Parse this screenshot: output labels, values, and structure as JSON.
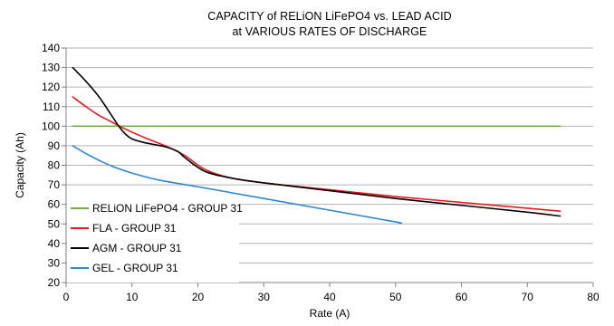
{
  "chart_data": {
    "type": "line",
    "title": "CAPACITY of RELiON LiFePO4 vs. LEAD ACID",
    "subtitle": "at VARIOUS RATES OF DISCHARGE",
    "xlabel": "Rate (A)",
    "ylabel": "Capacity (Ah)",
    "xlim": [
      0,
      80
    ],
    "ylim": [
      20,
      140
    ],
    "x_ticks": [
      0,
      10,
      20,
      30,
      40,
      50,
      60,
      70,
      80
    ],
    "y_ticks": [
      20,
      30,
      40,
      50,
      60,
      70,
      80,
      90,
      100,
      110,
      120,
      130,
      140
    ],
    "grid": "horizontal",
    "legend_position": "bottom-left",
    "series": [
      {
        "name": "RELiON LiFePO4 - GROUP 31",
        "color": "#70ad47",
        "x": [
          1,
          75
        ],
        "y": [
          100,
          100
        ]
      },
      {
        "name": "FLA - GROUP 31",
        "color": "#e8191f",
        "x": [
          1,
          3,
          5,
          7,
          9,
          12,
          15,
          18,
          21,
          25,
          30,
          40,
          50,
          60,
          70,
          75
        ],
        "y": [
          115,
          110,
          105.5,
          102,
          98.5,
          94,
          90,
          85,
          78,
          73.5,
          71,
          67.5,
          64,
          61,
          58,
          56.5
        ]
      },
      {
        "name": "AGM - GROUP 31",
        "color": "#000000",
        "x": [
          1,
          3,
          5,
          7,
          8,
          9,
          10,
          12,
          15,
          17,
          18,
          21,
          25,
          30,
          40,
          50,
          60,
          70,
          75
        ],
        "y": [
          130,
          123,
          115,
          105,
          100,
          96,
          93.5,
          91.5,
          89.5,
          87,
          84,
          77,
          73.5,
          71,
          67,
          63,
          59.5,
          56,
          54
        ]
      },
      {
        "name": "GEL - GROUP 31",
        "color": "#2f87d0",
        "x": [
          1,
          3,
          5,
          7,
          10,
          14,
          20,
          30,
          40,
          50,
          50.5
        ],
        "y": [
          90,
          86,
          82.5,
          79.5,
          76,
          72.5,
          69,
          63,
          57,
          51,
          50.5
        ]
      }
    ]
  }
}
